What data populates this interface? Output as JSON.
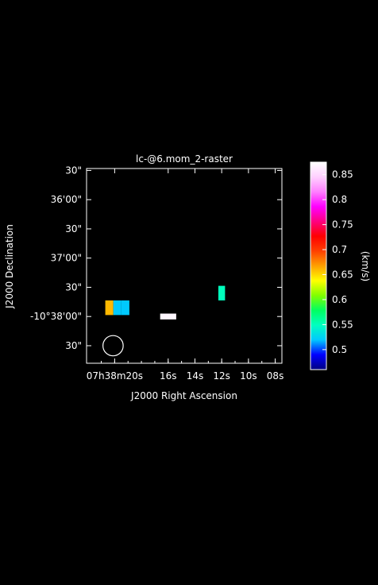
{
  "chart_data": {
    "type": "heatmap",
    "title": "lc-@6.mom_2-raster",
    "xlabel": "J2000 Right Ascension",
    "ylabel": "J2000 Declination",
    "x_ticks": [
      {
        "value_s": 20,
        "label": "07h38m20s"
      },
      {
        "value_s": 16,
        "label": "16s"
      },
      {
        "value_s": 14,
        "label": "14s"
      },
      {
        "value_s": 12,
        "label": "12s"
      },
      {
        "value_s": 10,
        "label": "10s"
      },
      {
        "value_s": 8,
        "label": "08s"
      }
    ],
    "x_range_s": [
      22.1,
      7.5
    ],
    "y_ticks": [
      {
        "value_arcsec": -2130,
        "label": "30\""
      },
      {
        "value_arcsec": -2160,
        "label": "36'00\""
      },
      {
        "value_arcsec": -2190,
        "label": "30\""
      },
      {
        "value_arcsec": -2220,
        "label": "37'00\""
      },
      {
        "value_arcsec": -2250,
        "label": "30\""
      },
      {
        "value_arcsec": -2280,
        "label": "-10°38'00\""
      },
      {
        "value_arcsec": -2310,
        "label": "30\""
      }
    ],
    "y_range_arcsec": [
      -2328,
      -2128
    ],
    "pixels": [
      {
        "ra_s": 20.4,
        "dec_arcsec": -2271,
        "w_s": 0.6,
        "h_arcsec": 15,
        "value": 0.66
      },
      {
        "ra_s": 19.8,
        "dec_arcsec": -2271,
        "w_s": 0.6,
        "h_arcsec": 15,
        "value": 0.52
      },
      {
        "ra_s": 19.2,
        "dec_arcsec": -2271,
        "w_s": 0.6,
        "h_arcsec": 15,
        "value": 0.52
      },
      {
        "ra_s": 16.0,
        "dec_arcsec": -2280,
        "w_s": 1.2,
        "h_arcsec": 6,
        "value": 0.87
      },
      {
        "ra_s": 12.0,
        "dec_arcsec": -2256,
        "w_s": 0.5,
        "h_arcsec": 15,
        "value": 0.55
      }
    ],
    "beam": {
      "ra_s": 20.0,
      "dec_arcsec": -2310,
      "diameter_arcsec": 16
    },
    "colorbar": {
      "label": "(km/s)",
      "range": [
        0.46,
        0.875
      ],
      "ticks": [
        0.5,
        0.55,
        0.6,
        0.65,
        0.7,
        0.75,
        0.8,
        0.85
      ],
      "tick_labels": [
        "0.5",
        "0.55",
        "0.6",
        "0.65",
        "0.7",
        "0.75",
        "0.8",
        "0.85"
      ]
    },
    "colors": {
      "background": "#000000",
      "foreground": "#ffffff",
      "colormap": [
        "#000080",
        "#0000ff",
        "#00c8ff",
        "#00ffc0",
        "#00ff60",
        "#80ff00",
        "#ffff00",
        "#ffa000",
        "#ff4000",
        "#ff0000",
        "#ff0080",
        "#ff00ff",
        "#ff80ff",
        "#ffd0ff",
        "#ffffff"
      ]
    }
  }
}
